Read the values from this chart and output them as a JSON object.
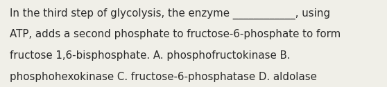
{
  "background_color": "#f0efe8",
  "text_color": "#2a2a2a",
  "font_size": 10.8,
  "line1": "In the third step of glycolysis, the enzyme ____________, using",
  "line2": "ATP, adds a second phosphate to fructose-6-phosphate to form",
  "line3": "fructose 1,6-bisphosphate. A. phosphofructokinase B.",
  "line4": "phosphohexokinase C. fructose-6-phosphatase D. aldolase",
  "figwidth": 5.58,
  "figheight": 1.26,
  "dpi": 100
}
